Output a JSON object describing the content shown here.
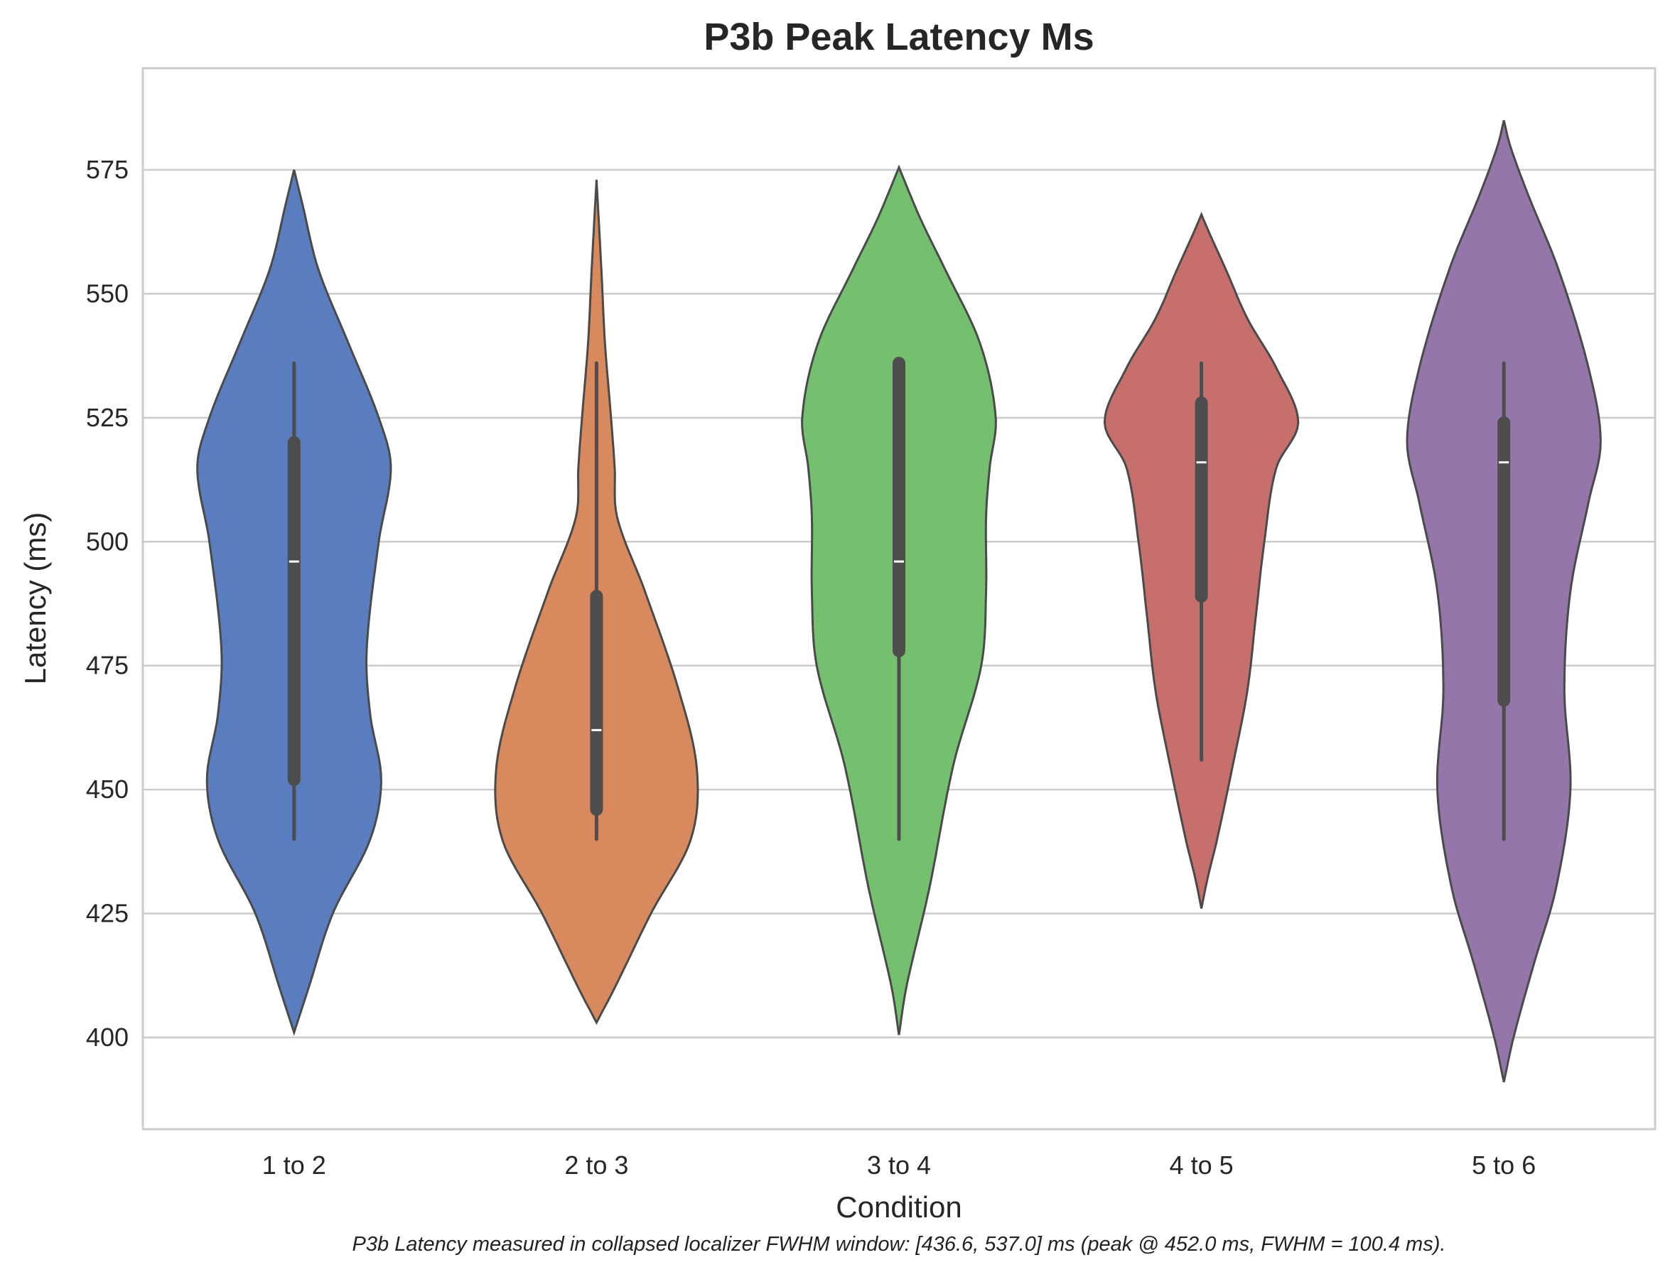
{
  "chart_data": {
    "type": "violin",
    "title": "P3b Peak Latency Ms",
    "xlabel": "Condition",
    "ylabel": "Latency (ms)",
    "caption": "P3b Latency measured in collapsed localizer FWHM window: [436.6, 537.0] ms (peak @ 452.0 ms, FWHM = 100.4 ms).",
    "ylim": [
      381.5,
      595.5
    ],
    "yticks": [
      400,
      425,
      450,
      475,
      500,
      525,
      550,
      575
    ],
    "grid": "horizontal",
    "categories": [
      "1 to 2",
      "2 to 3",
      "3 to 4",
      "4 to 5",
      "5 to 6"
    ],
    "series": [
      {
        "category": "1 to 2",
        "color": "#5a7dc0",
        "whisker": [
          440,
          536
        ],
        "q1": 452,
        "median": 496,
        "q3": 520,
        "density_profile": [
          [
            401,
            0.0
          ],
          [
            410,
            0.12
          ],
          [
            425,
            0.32
          ],
          [
            440,
            0.63
          ],
          [
            452,
            0.72
          ],
          [
            465,
            0.63
          ],
          [
            478,
            0.6
          ],
          [
            500,
            0.7
          ],
          [
            515,
            0.8
          ],
          [
            525,
            0.7
          ],
          [
            540,
            0.45
          ],
          [
            555,
            0.2
          ],
          [
            568,
            0.07
          ],
          [
            575,
            0.0
          ]
        ]
      },
      {
        "category": "2 to 3",
        "color": "#d88a5e",
        "whisker": [
          440,
          536
        ],
        "q1": 446,
        "median": 462,
        "q3": 489,
        "density_profile": [
          [
            403,
            0.0
          ],
          [
            410,
            0.15
          ],
          [
            425,
            0.45
          ],
          [
            440,
            0.78
          ],
          [
            454,
            0.83
          ],
          [
            470,
            0.68
          ],
          [
            490,
            0.4
          ],
          [
            505,
            0.17
          ],
          [
            515,
            0.15
          ],
          [
            525,
            0.12
          ],
          [
            540,
            0.07
          ],
          [
            555,
            0.04
          ],
          [
            573,
            0.0
          ]
        ]
      },
      {
        "category": "3 to 4",
        "color": "#74c06f",
        "whisker": [
          440,
          536
        ],
        "q1": 478,
        "median": 496,
        "q3": 536,
        "density_profile": [
          [
            400.5,
            0.0
          ],
          [
            410,
            0.06
          ],
          [
            430,
            0.25
          ],
          [
            455,
            0.45
          ],
          [
            475,
            0.68
          ],
          [
            490,
            0.72
          ],
          [
            505,
            0.72
          ],
          [
            515,
            0.75
          ],
          [
            525,
            0.8
          ],
          [
            540,
            0.67
          ],
          [
            555,
            0.38
          ],
          [
            565,
            0.18
          ],
          [
            575.5,
            0.0
          ]
        ]
      },
      {
        "category": "4 to 5",
        "color": "#c76f6d",
        "whisker": [
          456,
          536
        ],
        "q1": 489,
        "median": 516,
        "q3": 528,
        "density_profile": [
          [
            426,
            0.0
          ],
          [
            432,
            0.05
          ],
          [
            440,
            0.13
          ],
          [
            455,
            0.26
          ],
          [
            470,
            0.38
          ],
          [
            485,
            0.45
          ],
          [
            500,
            0.52
          ],
          [
            515,
            0.62
          ],
          [
            524,
            0.8
          ],
          [
            535,
            0.62
          ],
          [
            545,
            0.38
          ],
          [
            555,
            0.2
          ],
          [
            562,
            0.07
          ],
          [
            566,
            0.0
          ]
        ]
      },
      {
        "category": "5 to 6",
        "color": "#9476ab",
        "whisker": [
          440,
          536
        ],
        "q1": 468,
        "median": 516,
        "q3": 524,
        "density_profile": [
          [
            391,
            0.0
          ],
          [
            400,
            0.08
          ],
          [
            415,
            0.25
          ],
          [
            430,
            0.43
          ],
          [
            450,
            0.55
          ],
          [
            470,
            0.5
          ],
          [
            490,
            0.55
          ],
          [
            508,
            0.7
          ],
          [
            520,
            0.8
          ],
          [
            535,
            0.7
          ],
          [
            555,
            0.45
          ],
          [
            570,
            0.2
          ],
          [
            580,
            0.05
          ],
          [
            585,
            0.0
          ]
        ]
      }
    ]
  }
}
